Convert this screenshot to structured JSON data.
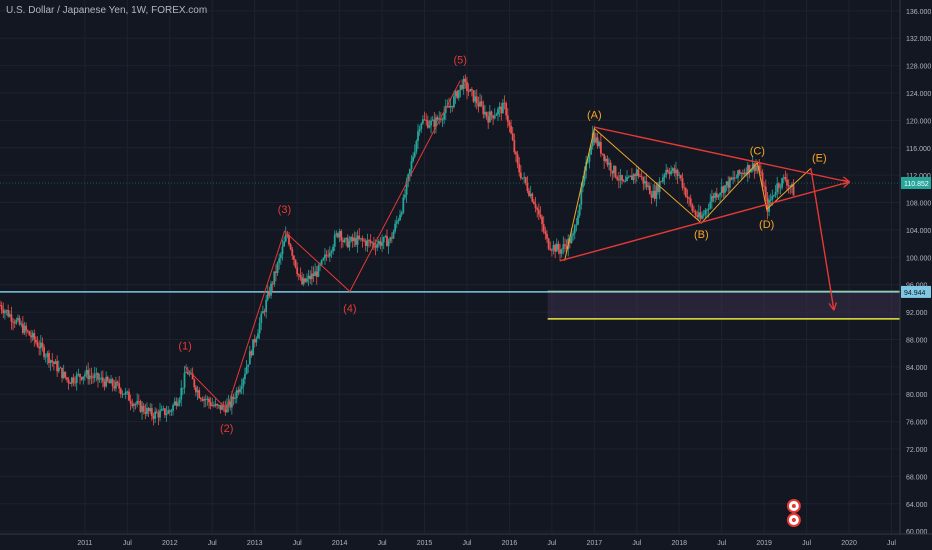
{
  "header": {
    "title": "U.S. Dollar / Japanese Yen, 1W, FOREX.com"
  },
  "colors": {
    "background": "#131722",
    "grid": "#1e2230",
    "up": "#26a69a",
    "down": "#ef5350",
    "wave_red": "#e53935",
    "wave_orange": "#f5a623",
    "hline_blue": "#7ec8e3",
    "zone_yellow": "#e8e83a",
    "zone_fill": "#3a2f4a",
    "axis_text": "#b2b5be"
  },
  "chart_data": {
    "type": "candlestick",
    "symbol": "USD/JPY",
    "timeframe": "1W",
    "y_axis": {
      "ylim": [
        59,
        137
      ],
      "ticks": [
        "136.000",
        "132.000",
        "128.000",
        "124.000",
        "120.000",
        "116.000",
        "112.000",
        "108.000",
        "104.000",
        "100.000",
        "96.000",
        "92.000",
        "88.000",
        "84.000",
        "80.000",
        "76.000",
        "72.000",
        "68.000",
        "64.000",
        "60.000"
      ]
    },
    "x_axis": {
      "xlim": [
        2010.0,
        2020.6
      ],
      "ticks": [
        {
          "label": "2011",
          "t": 2011.0
        },
        {
          "label": "Jul",
          "t": 2011.5
        },
        {
          "label": "2012",
          "t": 2012.0
        },
        {
          "label": "Jul",
          "t": 2012.5
        },
        {
          "label": "2013",
          "t": 2013.0
        },
        {
          "label": "Jul",
          "t": 2013.5
        },
        {
          "label": "2014",
          "t": 2014.0
        },
        {
          "label": "Jul",
          "t": 2014.5
        },
        {
          "label": "2015",
          "t": 2015.0
        },
        {
          "label": "Jul",
          "t": 2015.5
        },
        {
          "label": "2016",
          "t": 2016.0
        },
        {
          "label": "Jul",
          "t": 2016.5
        },
        {
          "label": "2017",
          "t": 2017.0
        },
        {
          "label": "Jul",
          "t": 2017.5
        },
        {
          "label": "2018",
          "t": 2018.0
        },
        {
          "label": "Jul",
          "t": 2018.5
        },
        {
          "label": "2019",
          "t": 2019.0
        },
        {
          "label": "Jul",
          "t": 2019.5
        },
        {
          "label": "2020",
          "t": 2020.0
        },
        {
          "label": "Jul",
          "t": 2020.5
        }
      ]
    },
    "price_path": [
      [
        2010.0,
        93.0
      ],
      [
        2010.2,
        90.5
      ],
      [
        2010.4,
        88.0
      ],
      [
        2010.6,
        85.0
      ],
      [
        2010.8,
        82.0
      ],
      [
        2011.0,
        83.0
      ],
      [
        2011.2,
        82.0
      ],
      [
        2011.4,
        81.0
      ],
      [
        2011.6,
        78.5
      ],
      [
        2011.8,
        77.0
      ],
      [
        2012.0,
        77.5
      ],
      [
        2012.12,
        80.0
      ],
      [
        2012.2,
        83.5
      ],
      [
        2012.35,
        80.0
      ],
      [
        2012.55,
        78.0
      ],
      [
        2012.7,
        78.2
      ],
      [
        2012.85,
        82.0
      ],
      [
        2013.0,
        88.0
      ],
      [
        2013.15,
        94.0
      ],
      [
        2013.3,
        100.0
      ],
      [
        2013.38,
        103.5
      ],
      [
        2013.55,
        96.0
      ],
      [
        2013.75,
        98.0
      ],
      [
        2014.0,
        104.0
      ],
      [
        2014.05,
        102.0
      ],
      [
        2014.2,
        102.5
      ],
      [
        2014.4,
        102.0
      ],
      [
        2014.6,
        102.5
      ],
      [
        2014.75,
        108.0
      ],
      [
        2014.95,
        120.0
      ],
      [
        2015.1,
        119.5
      ],
      [
        2015.3,
        122.0
      ],
      [
        2015.45,
        125.5
      ],
      [
        2015.6,
        123.0
      ],
      [
        2015.75,
        120.5
      ],
      [
        2015.95,
        122.0
      ],
      [
        2016.1,
        113.0
      ],
      [
        2016.3,
        108.0
      ],
      [
        2016.45,
        102.0
      ],
      [
        2016.6,
        101.0
      ],
      [
        2016.75,
        103.0
      ],
      [
        2016.9,
        113.0
      ],
      [
        2016.98,
        118.0
      ],
      [
        2017.15,
        114.0
      ],
      [
        2017.35,
        110.5
      ],
      [
        2017.5,
        112.5
      ],
      [
        2017.7,
        109.0
      ],
      [
        2017.85,
        113.0
      ],
      [
        2018.0,
        112.0
      ],
      [
        2018.15,
        107.0
      ],
      [
        2018.25,
        105.5
      ],
      [
        2018.4,
        109.0
      ],
      [
        2018.6,
        111.0
      ],
      [
        2018.8,
        113.0
      ],
      [
        2018.92,
        113.5
      ],
      [
        2019.0,
        110.0
      ],
      [
        2019.03,
        107.0
      ],
      [
        2019.15,
        110.5
      ],
      [
        2019.25,
        111.5
      ],
      [
        2019.35,
        109.5
      ]
    ],
    "last_price": "110.852",
    "horizontal_line": {
      "price": 94.944,
      "label": "94.944"
    },
    "target_zone": {
      "top": 95.0,
      "bottom": 91.0,
      "start": 2016.45
    },
    "wave_labels": [
      {
        "text": "(1)",
        "t": 2012.18,
        "price": 86.5,
        "color": "red"
      },
      {
        "text": "(2)",
        "t": 2012.67,
        "price": 74.5,
        "color": "red"
      },
      {
        "text": "(3)",
        "t": 2013.35,
        "price": 106.5,
        "color": "red"
      },
      {
        "text": "(4)",
        "t": 2014.12,
        "price": 92.0,
        "color": "red"
      },
      {
        "text": "(5)",
        "t": 2015.42,
        "price": 128.3,
        "color": "red"
      },
      {
        "text": "(A)",
        "t": 2017.0,
        "price": 120.3,
        "color": "orange"
      },
      {
        "text": "(B)",
        "t": 2018.26,
        "price": 102.8,
        "color": "orange"
      },
      {
        "text": "(C)",
        "t": 2018.92,
        "price": 115.0,
        "color": "orange"
      },
      {
        "text": "(D)",
        "t": 2019.03,
        "price": 104.3,
        "color": "orange"
      },
      {
        "text": "(E)",
        "t": 2019.65,
        "price": 114.0,
        "color": "orange"
      }
    ],
    "impulse_path": [
      [
        2012.18,
        84.0
      ],
      [
        2012.67,
        77.8
      ],
      [
        2013.35,
        103.8
      ],
      [
        2014.12,
        95.0
      ],
      [
        2015.42,
        125.8
      ]
    ],
    "abcde_path": [
      [
        2016.65,
        99.5
      ],
      [
        2017.0,
        118.8
      ],
      [
        2018.26,
        105.0
      ],
      [
        2018.92,
        113.8
      ],
      [
        2019.03,
        107.0
      ],
      [
        2019.55,
        113.0
      ]
    ],
    "triangle_upper": [
      [
        2017.0,
        119.0
      ],
      [
        2020.0,
        111.0
      ]
    ],
    "triangle_lower": [
      [
        2016.6,
        99.5
      ],
      [
        2020.0,
        111.0
      ]
    ],
    "projection_arrow": [
      [
        2019.55,
        113.0
      ],
      [
        2019.82,
        92.4
      ]
    ]
  }
}
